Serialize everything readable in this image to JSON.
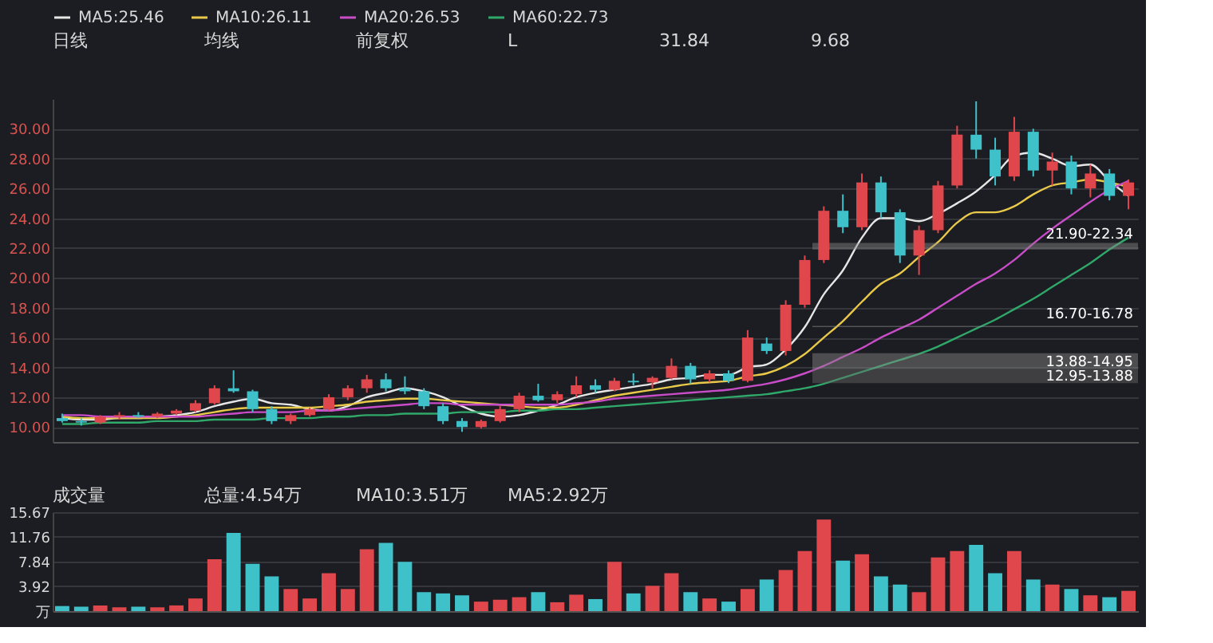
{
  "chart_data": [
    {
      "type": "candlestick",
      "categories": [
        null,
        null,
        null,
        null,
        null,
        null,
        null,
        null,
        null,
        null,
        null,
        null,
        null,
        null,
        null,
        null,
        null,
        null,
        null,
        null,
        null,
        null,
        null,
        null,
        null,
        null,
        null,
        null,
        null,
        null,
        null,
        null,
        null,
        null,
        null,
        null,
        null,
        null,
        null,
        null,
        null,
        null,
        null,
        null,
        null,
        null,
        null,
        null,
        null,
        null,
        null,
        null,
        null,
        null,
        null,
        null,
        null
      ],
      "ohlc": [
        [
          10.6,
          10.9,
          10.3,
          10.4
        ],
        [
          10.4,
          10.6,
          10.1,
          10.3
        ],
        [
          10.3,
          10.8,
          10.2,
          10.7
        ],
        [
          10.7,
          11.0,
          10.5,
          10.8
        ],
        [
          10.8,
          11.0,
          10.6,
          10.7
        ],
        [
          10.7,
          11.0,
          10.6,
          10.9
        ],
        [
          10.9,
          11.2,
          10.8,
          11.1
        ],
        [
          11.1,
          11.8,
          11.0,
          11.6
        ],
        [
          11.6,
          12.8,
          11.5,
          12.6
        ],
        [
          12.6,
          13.8,
          12.3,
          12.4
        ],
        [
          12.4,
          12.5,
          11.0,
          11.2
        ],
        [
          11.2,
          11.4,
          10.2,
          10.4
        ],
        [
          10.4,
          10.9,
          10.2,
          10.8
        ],
        [
          10.8,
          11.3,
          10.7,
          11.2
        ],
        [
          11.2,
          12.2,
          11.1,
          12.0
        ],
        [
          12.0,
          12.8,
          11.8,
          12.6
        ],
        [
          12.6,
          13.5,
          12.3,
          13.2
        ],
        [
          13.2,
          13.6,
          12.4,
          12.6
        ],
        [
          12.6,
          13.4,
          12.2,
          12.4
        ],
        [
          12.4,
          12.6,
          11.2,
          11.4
        ],
        [
          11.4,
          11.6,
          10.2,
          10.4
        ],
        [
          10.4,
          10.6,
          9.68,
          10.0
        ],
        [
          10.0,
          10.5,
          9.9,
          10.4
        ],
        [
          10.4,
          11.4,
          10.3,
          11.2
        ],
        [
          11.2,
          12.3,
          11.0,
          12.1
        ],
        [
          12.1,
          12.9,
          11.7,
          11.8
        ],
        [
          11.8,
          12.4,
          11.6,
          12.2
        ],
        [
          12.2,
          13.4,
          12.0,
          12.8
        ],
        [
          12.8,
          13.2,
          12.3,
          12.5
        ],
        [
          12.5,
          13.3,
          12.4,
          13.1
        ],
        [
          13.1,
          13.6,
          12.8,
          13.0
        ],
        [
          13.0,
          13.4,
          12.6,
          13.3
        ],
        [
          13.3,
          14.6,
          13.2,
          14.1
        ],
        [
          14.1,
          14.3,
          12.9,
          13.2
        ],
        [
          13.2,
          13.8,
          13.0,
          13.6
        ],
        [
          13.6,
          13.8,
          12.95,
          13.1
        ],
        [
          13.1,
          16.5,
          13.0,
          16.0
        ],
        [
          15.6,
          16.0,
          14.9,
          15.1
        ],
        [
          15.1,
          18.5,
          14.8,
          18.2
        ],
        [
          18.2,
          21.5,
          18.0,
          21.2
        ],
        [
          21.2,
          24.8,
          21.0,
          24.5
        ],
        [
          24.5,
          25.6,
          23.0,
          23.4
        ],
        [
          23.4,
          27.0,
          23.2,
          26.4
        ],
        [
          26.4,
          26.8,
          24.0,
          24.4
        ],
        [
          24.4,
          24.6,
          21.0,
          21.5
        ],
        [
          21.5,
          23.5,
          20.2,
          23.2
        ],
        [
          23.2,
          26.5,
          23.0,
          26.2
        ],
        [
          26.2,
          30.2,
          26.0,
          29.6
        ],
        [
          29.6,
          31.84,
          28.0,
          28.6
        ],
        [
          28.6,
          29.4,
          26.2,
          26.8
        ],
        [
          26.8,
          30.8,
          26.5,
          29.8
        ],
        [
          29.8,
          30.0,
          26.8,
          27.2
        ],
        [
          27.2,
          28.4,
          26.2,
          27.8
        ],
        [
          27.8,
          28.2,
          25.6,
          26.0
        ],
        [
          26.0,
          27.6,
          25.4,
          27.0
        ],
        [
          27.0,
          27.3,
          25.2,
          25.5
        ],
        [
          25.5,
          26.6,
          24.6,
          26.4
        ]
      ],
      "colors": [
        "#3fc1c9",
        "#3fc1c9",
        "#e0474c",
        "#e0474c",
        "#3fc1c9",
        "#e0474c",
        "#e0474c",
        "#e0474c",
        "#e0474c",
        "#3fc1c9",
        "#3fc1c9",
        "#3fc1c9",
        "#e0474c",
        "#e0474c",
        "#e0474c",
        "#e0474c",
        "#e0474c",
        "#3fc1c9",
        "#3fc1c9",
        "#3fc1c9",
        "#3fc1c9",
        "#3fc1c9",
        "#e0474c",
        "#e0474c",
        "#e0474c",
        "#3fc1c9",
        "#e0474c",
        "#e0474c",
        "#3fc1c9",
        "#e0474c",
        "#3fc1c9",
        "#e0474c",
        "#e0474c",
        "#3fc1c9",
        "#e0474c",
        "#3fc1c9",
        "#e0474c",
        "#3fc1c9",
        "#e0474c",
        "#e0474c",
        "#e0474c",
        "#3fc1c9",
        "#e0474c",
        "#3fc1c9",
        "#3fc1c9",
        "#e0474c",
        "#e0474c",
        "#e0474c",
        "#3fc1c9",
        "#3fc1c9",
        "#e0474c",
        "#3fc1c9",
        "#e0474c",
        "#3fc1c9",
        "#e0474c",
        "#3fc1c9",
        "#e0474c"
      ],
      "series": [
        {
          "type": "line",
          "name": "MA5:25.46",
          "color": "#e6e6e6",
          "values": [
            10.6,
            10.5,
            10.5,
            10.6,
            10.6,
            10.7,
            10.8,
            11.0,
            11.4,
            11.7,
            11.9,
            11.6,
            11.5,
            11.2,
            11.1,
            11.4,
            12.0,
            12.3,
            12.6,
            12.4,
            12.0,
            11.4,
            10.9,
            10.7,
            10.8,
            11.1,
            11.5,
            12.0,
            12.3,
            12.5,
            12.7,
            12.9,
            13.2,
            13.3,
            13.5,
            13.5,
            14.0,
            14.2,
            15.2,
            16.7,
            18.9,
            20.5,
            22.7,
            24.0,
            24.0,
            23.8,
            24.3,
            25.0,
            25.8,
            26.9,
            28.2,
            28.4,
            28.0,
            27.5,
            27.6,
            26.5,
            25.5
          ]
        },
        {
          "type": "line",
          "name": "MA10:26.11",
          "color": "#e8c94a",
          "values": [
            10.7,
            10.6,
            10.6,
            10.6,
            10.6,
            10.6,
            10.7,
            10.8,
            11.0,
            11.2,
            11.3,
            11.3,
            11.3,
            11.3,
            11.4,
            11.5,
            11.7,
            11.8,
            11.9,
            11.9,
            11.8,
            11.7,
            11.6,
            11.5,
            11.4,
            11.3,
            11.3,
            11.5,
            11.8,
            12.1,
            12.3,
            12.5,
            12.7,
            12.9,
            13.0,
            13.1,
            13.4,
            13.6,
            14.1,
            14.9,
            16.0,
            17.1,
            18.4,
            19.6,
            20.3,
            21.4,
            22.4,
            23.7,
            24.4,
            24.4,
            24.8,
            25.6,
            26.2,
            26.4,
            26.6,
            26.4,
            26.1
          ]
        },
        {
          "type": "line",
          "name": "MA20:26.53",
          "color": "#c94cc9",
          "values": [
            10.8,
            10.8,
            10.7,
            10.7,
            10.7,
            10.7,
            10.7,
            10.7,
            10.8,
            10.9,
            11.0,
            11.0,
            11.0,
            11.1,
            11.1,
            11.2,
            11.3,
            11.4,
            11.5,
            11.6,
            11.6,
            11.5,
            11.5,
            11.5,
            11.5,
            11.5,
            11.5,
            11.6,
            11.7,
            11.9,
            12.0,
            12.1,
            12.2,
            12.3,
            12.4,
            12.5,
            12.7,
            12.9,
            13.2,
            13.6,
            14.1,
            14.7,
            15.3,
            16.0,
            16.6,
            17.2,
            18.0,
            18.8,
            19.6,
            20.3,
            21.2,
            22.3,
            23.3,
            24.2,
            25.1,
            25.9,
            26.5
          ]
        },
        {
          "type": "line",
          "name": "MA60:22.73",
          "color": "#2fa86a",
          "values": [
            10.2,
            10.2,
            10.3,
            10.3,
            10.3,
            10.4,
            10.4,
            10.4,
            10.5,
            10.5,
            10.5,
            10.6,
            10.6,
            10.6,
            10.7,
            10.7,
            10.8,
            10.8,
            10.9,
            10.9,
            10.9,
            11.0,
            11.0,
            11.0,
            11.1,
            11.1,
            11.2,
            11.2,
            11.3,
            11.4,
            11.5,
            11.6,
            11.7,
            11.8,
            11.9,
            12.0,
            12.1,
            12.2,
            12.4,
            12.6,
            12.9,
            13.3,
            13.7,
            14.1,
            14.5,
            14.9,
            15.4,
            16.0,
            16.6,
            17.2,
            17.9,
            18.6,
            19.4,
            20.2,
            21.0,
            21.9,
            22.7
          ]
        }
      ],
      "ylim": [
        9,
        32
      ],
      "yticks": [
        {
          "value": 10,
          "label": "10.00"
        },
        {
          "value": 12,
          "label": "12.00"
        },
        {
          "value": 14,
          "label": "14.00"
        },
        {
          "value": 16,
          "label": "16.00"
        },
        {
          "value": 18,
          "label": "18.00"
        },
        {
          "value": 20,
          "label": "20.00"
        },
        {
          "value": 22,
          "label": "22.00"
        },
        {
          "value": 24,
          "label": "24.00"
        },
        {
          "value": 26,
          "label": "26.00"
        },
        {
          "value": 28,
          "label": "28.00"
        },
        {
          "value": 30,
          "label": "30.00"
        }
      ],
      "grid": "y",
      "legend": "top",
      "tick_labels": "y",
      "bands": [
        {
          "axis": "y",
          "from": 13.88,
          "to": 14.95,
          "label": "13.88-14.95",
          "color": "#8a8a8a"
        },
        {
          "axis": "y",
          "from": 12.95,
          "to": 13.88,
          "label": "12.95-13.88",
          "color": "#6a6a6a"
        },
        {
          "axis": "y",
          "from": 16.7,
          "to": 16.78,
          "label": "16.70-16.78",
          "color": "#9a9a9a"
        },
        {
          "axis": "y",
          "from": 21.9,
          "to": 22.34,
          "label": "21.90-22.34",
          "color": "#8a8a8a"
        }
      ],
      "annotations": [
        "日线",
        "均线",
        "前复权",
        "L",
        "31.84",
        "9.68"
      ]
    },
    {
      "type": "bar",
      "categories": [
        null,
        null,
        null,
        null,
        null,
        null,
        null,
        null,
        null,
        null,
        null,
        null,
        null,
        null,
        null,
        null,
        null,
        null,
        null,
        null,
        null,
        null,
        null,
        null,
        null,
        null,
        null,
        null,
        null,
        null,
        null,
        null,
        null,
        null,
        null,
        null,
        null,
        null,
        null,
        null,
        null,
        null,
        null,
        null,
        null,
        null,
        null,
        null,
        null,
        null,
        null,
        null,
        null,
        null,
        null,
        null,
        null
      ],
      "values": [
        0.8,
        0.7,
        0.9,
        0.6,
        0.7,
        0.6,
        0.9,
        2.0,
        8.2,
        12.4,
        7.5,
        5.5,
        3.5,
        2.0,
        6.0,
        3.5,
        9.8,
        10.8,
        7.8,
        3.0,
        2.8,
        2.5,
        1.5,
        1.8,
        2.2,
        3.0,
        1.4,
        2.6,
        1.9,
        7.8,
        2.8,
        4.0,
        6.0,
        3.0,
        2.0,
        1.5,
        3.5,
        5.0,
        6.5,
        9.5,
        14.5,
        8.0,
        9.0,
        5.5,
        4.2,
        3.0,
        8.5,
        9.5,
        10.5,
        6.0,
        9.5,
        5.0,
        4.2,
        3.5,
        2.5,
        2.2,
        3.2
      ],
      "colors": [
        "#3fc1c9",
        "#3fc1c9",
        "#e0474c",
        "#e0474c",
        "#3fc1c9",
        "#e0474c",
        "#e0474c",
        "#e0474c",
        "#e0474c",
        "#3fc1c9",
        "#3fc1c9",
        "#3fc1c9",
        "#e0474c",
        "#e0474c",
        "#e0474c",
        "#e0474c",
        "#e0474c",
        "#3fc1c9",
        "#3fc1c9",
        "#3fc1c9",
        "#3fc1c9",
        "#3fc1c9",
        "#e0474c",
        "#e0474c",
        "#e0474c",
        "#3fc1c9",
        "#e0474c",
        "#e0474c",
        "#3fc1c9",
        "#e0474c",
        "#3fc1c9",
        "#e0474c",
        "#e0474c",
        "#3fc1c9",
        "#e0474c",
        "#3fc1c9",
        "#e0474c",
        "#3fc1c9",
        "#e0474c",
        "#e0474c",
        "#e0474c",
        "#3fc1c9",
        "#e0474c",
        "#3fc1c9",
        "#3fc1c9",
        "#e0474c",
        "#e0474c",
        "#e0474c",
        "#3fc1c9",
        "#3fc1c9",
        "#e0474c",
        "#3fc1c9",
        "#e0474c",
        "#3fc1c9",
        "#e0474c",
        "#3fc1c9",
        "#e0474c"
      ],
      "ylim": [
        0,
        15.67
      ],
      "yticks": [
        {
          "value": 0,
          "label": "万"
        },
        {
          "value": 3.92,
          "label": "3.92"
        },
        {
          "value": 7.84,
          "label": "7.84"
        },
        {
          "value": 11.76,
          "label": "11.76"
        },
        {
          "value": 15.67,
          "label": "15.67"
        }
      ],
      "grid": "y",
      "tick_labels": "y",
      "annotations": [
        "成交量",
        "总量:4.54万",
        "MA10:3.51万",
        "MA5:2.92万"
      ]
    }
  ]
}
